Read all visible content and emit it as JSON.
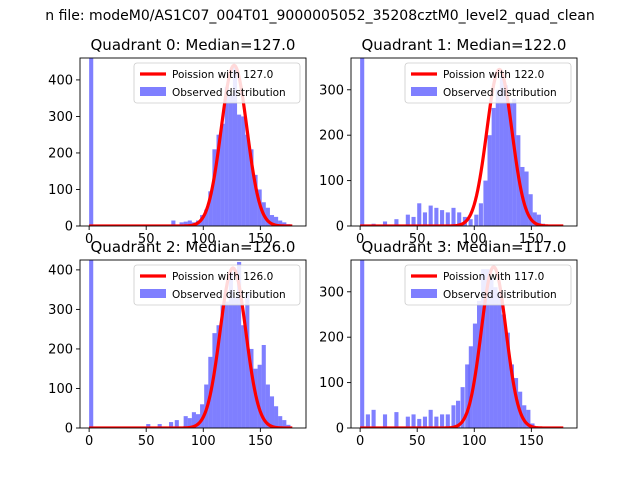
{
  "suptitle": "n file: modeM0/AS1C07_004T01_9000005052_35208cztM0_level2_quad_clean",
  "colors": {
    "curve": "#ff0000",
    "bars": "#0000ff",
    "bar_alpha": 0.5,
    "axes": "#000000"
  },
  "chart_data": [
    {
      "type": "bar",
      "title": "Quadrant 0: Median=127.0",
      "legend_curve": "Poission with 127.0",
      "legend_hist": "Observed distribution",
      "legend_position": "top-right",
      "xlim": [
        -8,
        190
      ],
      "ylim": [
        0,
        460
      ],
      "xticks": [
        0,
        50,
        100,
        150
      ],
      "yticks": [
        0,
        100,
        200,
        300,
        400
      ],
      "bin_width": 3.6,
      "bin_starts": [
        0,
        72,
        79.2,
        82.8,
        86.4,
        90,
        93.6,
        97.2,
        100.8,
        104.4,
        108,
        111.6,
        115.2,
        118.8,
        122.4,
        126,
        129.6,
        133.2,
        136.8,
        140.4,
        144,
        147.6,
        151.2,
        154.8,
        158.4,
        162,
        165.6,
        169.2,
        172.8
      ],
      "bin_counts": [
        460,
        15,
        10,
        12,
        15,
        10,
        15,
        30,
        45,
        95,
        210,
        250,
        280,
        380,
        360,
        440,
        305,
        300,
        250,
        210,
        140,
        100,
        65,
        50,
        30,
        25,
        15,
        10,
        5
      ],
      "poisson_mean": 127.0,
      "poisson_peak": 440
    },
    {
      "type": "bar",
      "title": "Quadrant 1: Median=122.0",
      "legend_curve": "Poission with 122.0",
      "legend_hist": "Observed distribution",
      "legend_position": "top-right",
      "xlim": [
        -8,
        190
      ],
      "ylim": [
        0,
        370
      ],
      "xticks": [
        0,
        50,
        100,
        150
      ],
      "yticks": [
        0,
        100,
        200,
        300
      ],
      "bin_width": 3.6,
      "bin_starts": [
        0,
        10,
        20,
        30,
        40,
        45,
        50,
        55,
        60,
        65,
        70,
        75,
        80,
        85,
        90,
        95,
        100,
        104,
        108,
        111.6,
        115.2,
        118.8,
        122.4,
        126,
        129.6,
        133.2,
        136.8,
        140.4,
        144,
        147.6,
        151.2,
        154.8,
        158.4
      ],
      "bin_counts": [
        370,
        5,
        10,
        15,
        25,
        20,
        50,
        30,
        45,
        40,
        35,
        30,
        40,
        30,
        20,
        15,
        25,
        50,
        100,
        200,
        260,
        300,
        330,
        310,
        270,
        280,
        200,
        130,
        120,
        70,
        30,
        25,
        5
      ],
      "poisson_mean": 122.0,
      "poisson_peak": 345
    },
    {
      "type": "bar",
      "title": "Quadrant 2: Median=126.0",
      "legend_curve": "Poission with 126.0",
      "legend_hist": "Observed distribution",
      "legend_position": "top-right",
      "xlim": [
        -8,
        190
      ],
      "ylim": [
        0,
        425
      ],
      "xticks": [
        0,
        50,
        100,
        150
      ],
      "yticks": [
        0,
        100,
        200,
        300,
        400
      ],
      "bin_width": 3.6,
      "bin_starts": [
        0,
        50,
        60,
        70,
        75,
        82.8,
        86.4,
        90,
        93.6,
        97.2,
        100.8,
        104.4,
        108,
        111.6,
        115.2,
        118.8,
        122.4,
        126,
        129.6,
        133.2,
        136.8,
        140.4,
        144,
        147.6,
        151.2,
        154.8,
        158.4,
        162,
        165.6,
        169.2,
        172.8
      ],
      "bin_counts": [
        425,
        10,
        10,
        15,
        20,
        30,
        25,
        40,
        35,
        60,
        110,
        180,
        240,
        260,
        310,
        320,
        395,
        330,
        420,
        260,
        340,
        200,
        150,
        160,
        210,
        110,
        80,
        55,
        30,
        20,
        8
      ],
      "poisson_mean": 126.0,
      "poisson_peak": 405
    },
    {
      "type": "bar",
      "title": "Quadrant 3: Median=117.0",
      "legend_curve": "Poission with 117.0",
      "legend_hist": "Observed distribution",
      "legend_position": "top-right",
      "xlim": [
        -8,
        190
      ],
      "ylim": [
        0,
        370
      ],
      "xticks": [
        0,
        50,
        100,
        150
      ],
      "yticks": [
        0,
        100,
        200,
        300
      ],
      "bin_width": 3.6,
      "bin_starts": [
        0,
        5,
        10,
        20,
        30,
        40,
        45,
        50,
        55,
        60,
        65,
        70,
        75,
        80,
        84,
        88,
        92,
        95.2,
        98.8,
        102.4,
        106,
        109.6,
        113.2,
        116.8,
        120.4,
        124,
        127.6,
        131.2,
        134.8,
        138.4,
        142,
        145.6,
        149.2
      ],
      "bin_counts": [
        370,
        30,
        40,
        30,
        35,
        25,
        30,
        20,
        25,
        40,
        25,
        30,
        30,
        50,
        60,
        90,
        140,
        180,
        230,
        280,
        350,
        350,
        330,
        310,
        300,
        250,
        210,
        140,
        110,
        80,
        50,
        40,
        10
      ],
      "poisson_mean": 117.0,
      "poisson_peak": 355
    }
  ]
}
